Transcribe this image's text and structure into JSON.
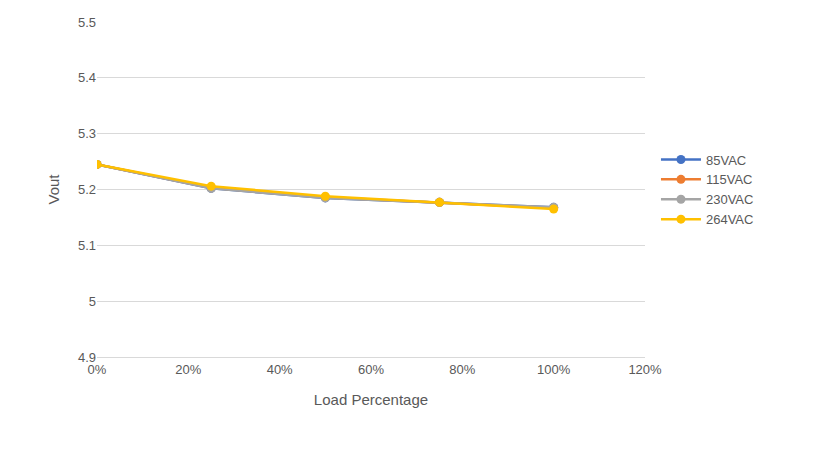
{
  "chart_data": {
    "type": "line",
    "x_label": "Load Percentage",
    "y_label": "Vout",
    "x": [
      0,
      25,
      50,
      75,
      100
    ],
    "series": [
      {
        "name": "85VAC",
        "color": "#4472c4",
        "marker": "circle",
        "values": [
          5.245,
          5.202,
          5.185,
          5.177,
          5.168
        ]
      },
      {
        "name": "115VAC",
        "color": "#ed7d31",
        "marker": "circle",
        "values": [
          5.245,
          5.203,
          5.186,
          5.177,
          5.167
        ]
      },
      {
        "name": "230VAC",
        "color": "#a5a5a5",
        "marker": "circle",
        "values": [
          5.245,
          5.202,
          5.185,
          5.177,
          5.168
        ]
      },
      {
        "name": "264VAC",
        "color": "#ffc000",
        "marker": "circle",
        "values": [
          5.245,
          5.206,
          5.188,
          5.177,
          5.165
        ]
      }
    ],
    "xlim": [
      0,
      120
    ],
    "xticks": [
      {
        "value": 0,
        "label": "0%"
      },
      {
        "value": 20,
        "label": "20%"
      },
      {
        "value": 40,
        "label": "40%"
      },
      {
        "value": 60,
        "label": "60%"
      },
      {
        "value": 80,
        "label": "80%"
      },
      {
        "value": 100,
        "label": "100%"
      },
      {
        "value": 120,
        "label": "120%"
      }
    ],
    "ylim": [
      4.9,
      5.5
    ],
    "yticks": [
      4.9,
      5,
      5.1,
      5.2,
      5.3,
      5.4,
      5.5
    ],
    "grid": true,
    "legend": "right"
  }
}
